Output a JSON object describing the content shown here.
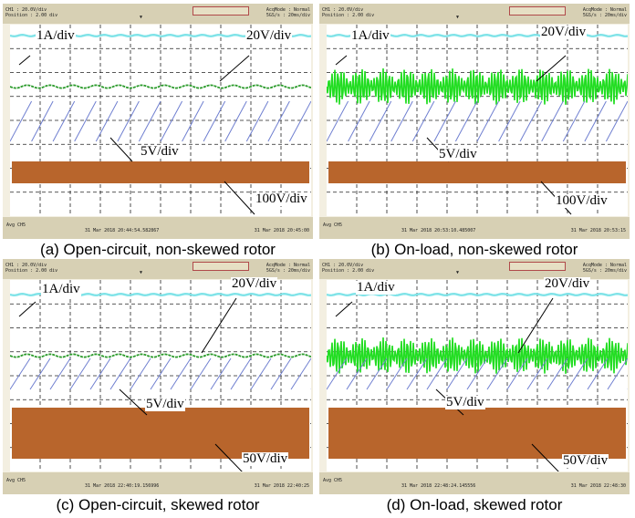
{
  "panels": [
    {
      "caption": "(a) Open-circuit, non-skewed rotor",
      "ch1_label": "1A/div",
      "ch2_label": "20V/div",
      "ch3_label": "5V/div",
      "ch4_label": "100V/div",
      "head_left": "CH1 : 20.0V/div\nPosition : 2.00 div",
      "head_right": "AcqMode : Normal\n5GS/s : 20ms/div",
      "foot_time": "31 Mar 2018 20:44:54.582867",
      "foot_date": "31 Mar 2018 20:45:00"
    },
    {
      "caption": "(b) On-load, non-skewed rotor",
      "ch1_label": "1A/div",
      "ch2_label": "20V/div",
      "ch3_label": "5V/div",
      "ch4_label": "100V/div",
      "head_left": "CH1 : 20.0V/div\nPosition : 2.00 div",
      "head_right": "AcqMode : Normal\n5GS/s : 20ms/div",
      "foot_time": "31 Mar 2018 20:53:10.485007",
      "foot_date": "31 Mar 2018 20:53:15"
    },
    {
      "caption": "(c) Open-circuit, skewed rotor",
      "ch1_label": "1A/div",
      "ch2_label": "20V/div",
      "ch3_label": "5V/div",
      "ch4_label": "50V/div",
      "head_left": "CH1 : 20.0V/div\nPosition : 2.00 div",
      "head_right": "AcqMode : Normal\n5GS/s : 20ms/div",
      "foot_time": "31 Mar 2018 22:40:19.156996",
      "foot_date": "31 Mar 2018 22:40:25"
    },
    {
      "caption": "(d) On-load, skewed rotor",
      "ch1_label": "1A/div",
      "ch2_label": "20V/div",
      "ch3_label": "5V/div",
      "ch4_label": "50V/div",
      "head_left": "CH1 : 20.0V/div\nPosition : 2.00 div",
      "head_right": "AcqMode : Normal\n5GS/s : 20ms/div",
      "foot_time": "31 Mar 2018 22:48:24.145556",
      "foot_date": "31 Mar 2018 22:48:30"
    }
  ],
  "colors": {
    "ch1": "#7fe3e8",
    "ch2_open": "#2a9a2a",
    "ch2_load": "#22dd22",
    "ch3": "#6f7fd0",
    "ch4": "#b8652c",
    "grid": "#222222"
  },
  "load_state": [
    "open-circuit",
    "on-load",
    "open-circuit",
    "on-load"
  ]
}
